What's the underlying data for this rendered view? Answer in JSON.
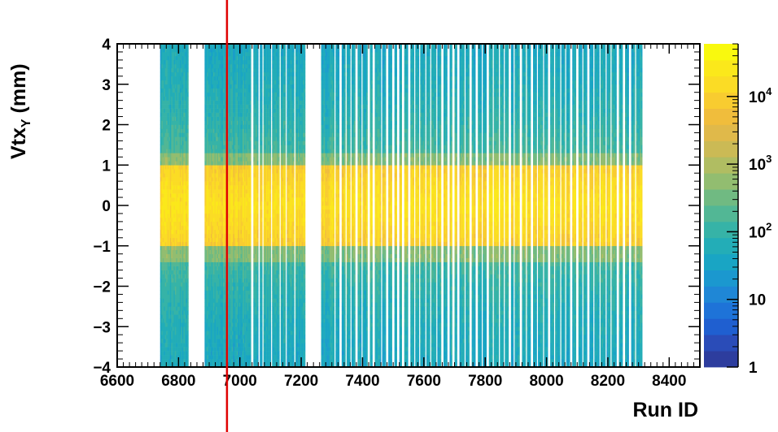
{
  "chart_data": {
    "type": "heatmap",
    "xlabel": "Run ID",
    "ylabel": "Vtx",
    "ylabel_sub": "Y",
    "ylabel_unit": " (mm)",
    "xlim": [
      6600,
      8500
    ],
    "ylim": [
      -4,
      4
    ],
    "x_ticks": [
      6600,
      6800,
      7000,
      7200,
      7400,
      7600,
      7800,
      8000,
      8200,
      8400
    ],
    "x_tick_labels": [
      "6600",
      "6800",
      "7000",
      "7200",
      "7400",
      "7600",
      "7800",
      "8000",
      "8200",
      "8400"
    ],
    "y_ticks": [
      -4,
      -3,
      -2,
      -1,
      0,
      1,
      2,
      3,
      4
    ],
    "y_tick_labels": [
      "−4",
      "−3",
      "−2",
      "−1",
      "0",
      "1",
      "2",
      "3",
      "4"
    ],
    "z_scale": "log",
    "z_range": [
      1,
      60000
    ],
    "colorbar_ticks": [
      {
        "value": 1,
        "base": "1",
        "exp": ""
      },
      {
        "value": 10,
        "base": "10",
        "exp": ""
      },
      {
        "value": 100,
        "base": "10",
        "exp": "2"
      },
      {
        "value": 1000,
        "base": "10",
        "exp": "3"
      },
      {
        "value": 10000,
        "base": "10",
        "exp": "4"
      }
    ],
    "colors": [
      "#2d3d9e",
      "#2a4cb8",
      "#1f5fd0",
      "#1e73d8",
      "#1f87d6",
      "#1b98cf",
      "#19a5c4",
      "#23adb7",
      "#36b3a7",
      "#52b795",
      "#70ba82",
      "#92bd70",
      "#b0bd62",
      "#cbba55",
      "#e0b94a",
      "#f0bd3c",
      "#f8cc30",
      "#fbdc25",
      "#fbe81b",
      "#f9f90e"
    ],
    "run_intervals": [
      [
        6740,
        6830
      ],
      [
        6885,
        6960
      ],
      [
        6962,
        7020
      ],
      [
        7020,
        7060
      ],
      [
        7065,
        7210
      ],
      [
        7265,
        7300
      ],
      [
        7300,
        8310
      ]
    ],
    "gaps": [
      7040,
      7076,
      7102,
      7130,
      7151,
      7178,
      7240,
      7310,
      7328,
      7346,
      7362,
      7380,
      7398,
      7420,
      7436,
      7462,
      7480,
      7500,
      7516,
      7532,
      7552,
      7570,
      7585,
      7605,
      7622,
      7642,
      7660,
      7680,
      7696,
      7712,
      7735,
      7752,
      7772,
      7790,
      7808,
      7825,
      7845,
      7862,
      7880,
      7895,
      7916,
      7935,
      7952,
      7970,
      7990,
      8008,
      8026,
      8045,
      8062,
      8080,
      8100,
      8118,
      8136,
      8155,
      8175,
      8193,
      8210,
      8232,
      8252,
      8272,
      8290
    ],
    "beam_core_y": [
      -1,
      1
    ],
    "beam_core_level": 20000,
    "tail_level_near": 150,
    "tail_level_far": 40,
    "marker_line": {
      "x": 6958,
      "color": "#e00000"
    }
  }
}
